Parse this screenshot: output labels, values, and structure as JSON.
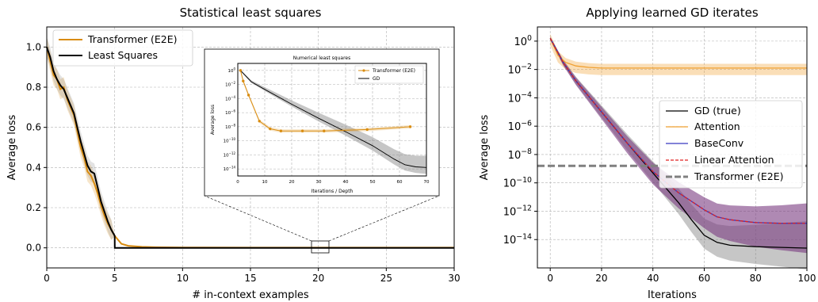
{
  "colors": {
    "transformer": "#d98c10",
    "least_squares": "#000000",
    "gd_band": "#808080",
    "attention": "#f0a030",
    "baseconv": "#3838c0",
    "linear_attention": "#e02020",
    "transformer_dash": "#808080",
    "purple_band": "#7a3a80"
  },
  "chart_data": [
    {
      "type": "line",
      "title": "Statistical least squares",
      "xlabel": "# in-context examples",
      "ylabel": "Average loss",
      "xlim": [
        0,
        30
      ],
      "ylim": [
        -0.1,
        1.1
      ],
      "xticks": [
        "0",
        "5",
        "10",
        "15",
        "20",
        "25",
        "30"
      ],
      "yticks": [
        "0.0",
        "0.2",
        "0.4",
        "0.6",
        "0.8",
        "1.0"
      ],
      "grid": true,
      "legend_position": "top-left",
      "series": [
        {
          "name": "Transformer (E2E)",
          "x": [
            0,
            0.25,
            0.5,
            0.75,
            1,
            1.25,
            1.5,
            1.75,
            2,
            2.25,
            2.5,
            2.75,
            3,
            3.25,
            3.5,
            3.75,
            4,
            4.25,
            4.5,
            4.75,
            5,
            5.5,
            6,
            7,
            8,
            10,
            15,
            20,
            25,
            30
          ],
          "values": [
            1.0,
            0.93,
            0.86,
            0.84,
            0.79,
            0.8,
            0.74,
            0.7,
            0.66,
            0.58,
            0.5,
            0.45,
            0.38,
            0.36,
            0.32,
            0.27,
            0.21,
            0.16,
            0.12,
            0.09,
            0.06,
            0.02,
            0.01,
            0.005,
            0.003,
            0.002,
            0.001,
            0.001,
            0.001,
            0.001
          ]
        },
        {
          "name": "Least Squares",
          "x": [
            0,
            0.25,
            0.5,
            0.75,
            1,
            1.25,
            1.5,
            1.75,
            2,
            2.25,
            2.5,
            2.75,
            3,
            3.25,
            3.5,
            3.75,
            4,
            4.25,
            4.5,
            4.75,
            5,
            5.01,
            10,
            15,
            20,
            25,
            30
          ],
          "values": [
            1.0,
            0.95,
            0.88,
            0.84,
            0.81,
            0.79,
            0.75,
            0.71,
            0.67,
            0.6,
            0.53,
            0.47,
            0.41,
            0.38,
            0.37,
            0.3,
            0.23,
            0.18,
            0.13,
            0.09,
            0.06,
            0.0,
            0.0,
            0.0,
            0.0,
            0.0,
            0.0
          ]
        }
      ],
      "inset": {
        "title": "Numerical least squares",
        "xlabel": "Iterations / Depth",
        "ylabel": "Average loss",
        "xlim": [
          0,
          70
        ],
        "xticks": [
          "0",
          "10",
          "20",
          "30",
          "40",
          "50",
          "60",
          "70"
        ],
        "yticks": [
          "10^0",
          "10^-2",
          "10^-4",
          "10^-6",
          "10^-8",
          "10^-10",
          "10^-12",
          "10^-14"
        ],
        "ylog_range": [
          -15,
          1
        ],
        "series": [
          {
            "name": "Transformer (E2E)",
            "x": [
              1,
              2,
              4,
              8,
              12,
              16,
              24,
              32,
              48,
              64
            ],
            "log10_values": [
              0,
              -1.5,
              -3.5,
              -7.2,
              -8.3,
              -8.6,
              -8.6,
              -8.6,
              -8.4,
              -8.0
            ]
          },
          {
            "name": "GD",
            "x": [
              1,
              5,
              10,
              20,
              30,
              40,
              50,
              58,
              62,
              66,
              70
            ],
            "log10_values": [
              0,
              -1.6,
              -2.7,
              -4.8,
              -6.8,
              -8.7,
              -10.7,
              -12.6,
              -13.4,
              -13.7,
              -13.8
            ]
          }
        ]
      }
    },
    {
      "type": "line",
      "title": "Applying learned GD iterates",
      "xlabel": "Iterations",
      "ylabel": "Average loss",
      "xlim": [
        -5,
        100
      ],
      "yscale": "log",
      "ylog_range": [
        -16,
        1
      ],
      "xticks": [
        "0",
        "20",
        "40",
        "60",
        "80",
        "100"
      ],
      "yticks": [
        "10^0",
        "10^-2",
        "10^-4",
        "10^-6",
        "10^-8",
        "10^-10",
        "10^-12",
        "10^-14"
      ],
      "grid": true,
      "legend_position": "center-right",
      "series": [
        {
          "name": "GD (true)",
          "x": [
            0,
            5,
            10,
            20,
            30,
            40,
            50,
            55,
            60,
            65,
            70,
            80,
            90,
            100
          ],
          "log10_values": [
            0.2,
            -1.5,
            -2.8,
            -5.0,
            -7.2,
            -9.3,
            -11.4,
            -12.6,
            -13.7,
            -14.2,
            -14.4,
            -14.5,
            -14.55,
            -14.6
          ]
        },
        {
          "name": "Attention",
          "x": [
            0,
            3,
            6,
            10,
            15,
            20,
            40,
            60,
            80,
            100
          ],
          "log10_values": [
            0.2,
            -1.0,
            -1.5,
            -1.75,
            -1.85,
            -1.9,
            -1.9,
            -1.9,
            -1.9,
            -1.9
          ]
        },
        {
          "name": "BaseConv",
          "x": [
            0,
            5,
            10,
            20,
            30,
            40,
            50,
            60,
            65,
            70,
            80,
            90,
            100
          ],
          "log10_values": [
            0.2,
            -1.5,
            -2.8,
            -5.0,
            -7.2,
            -9.2,
            -10.7,
            -11.9,
            -12.4,
            -12.6,
            -12.8,
            -12.85,
            -12.85
          ]
        },
        {
          "name": "Linear Attention",
          "x": [
            0,
            5,
            10,
            20,
            30,
            40,
            50,
            60,
            65,
            70,
            80,
            90,
            100
          ],
          "log10_values": [
            0.2,
            -1.5,
            -2.8,
            -5.0,
            -7.2,
            -9.2,
            -10.7,
            -11.9,
            -12.4,
            -12.6,
            -12.8,
            -12.85,
            -12.85
          ]
        },
        {
          "name": "Transformer (E2E)",
          "x": [
            -5,
            100
          ],
          "log10_values": [
            -8.8,
            -8.8
          ]
        }
      ]
    }
  ]
}
